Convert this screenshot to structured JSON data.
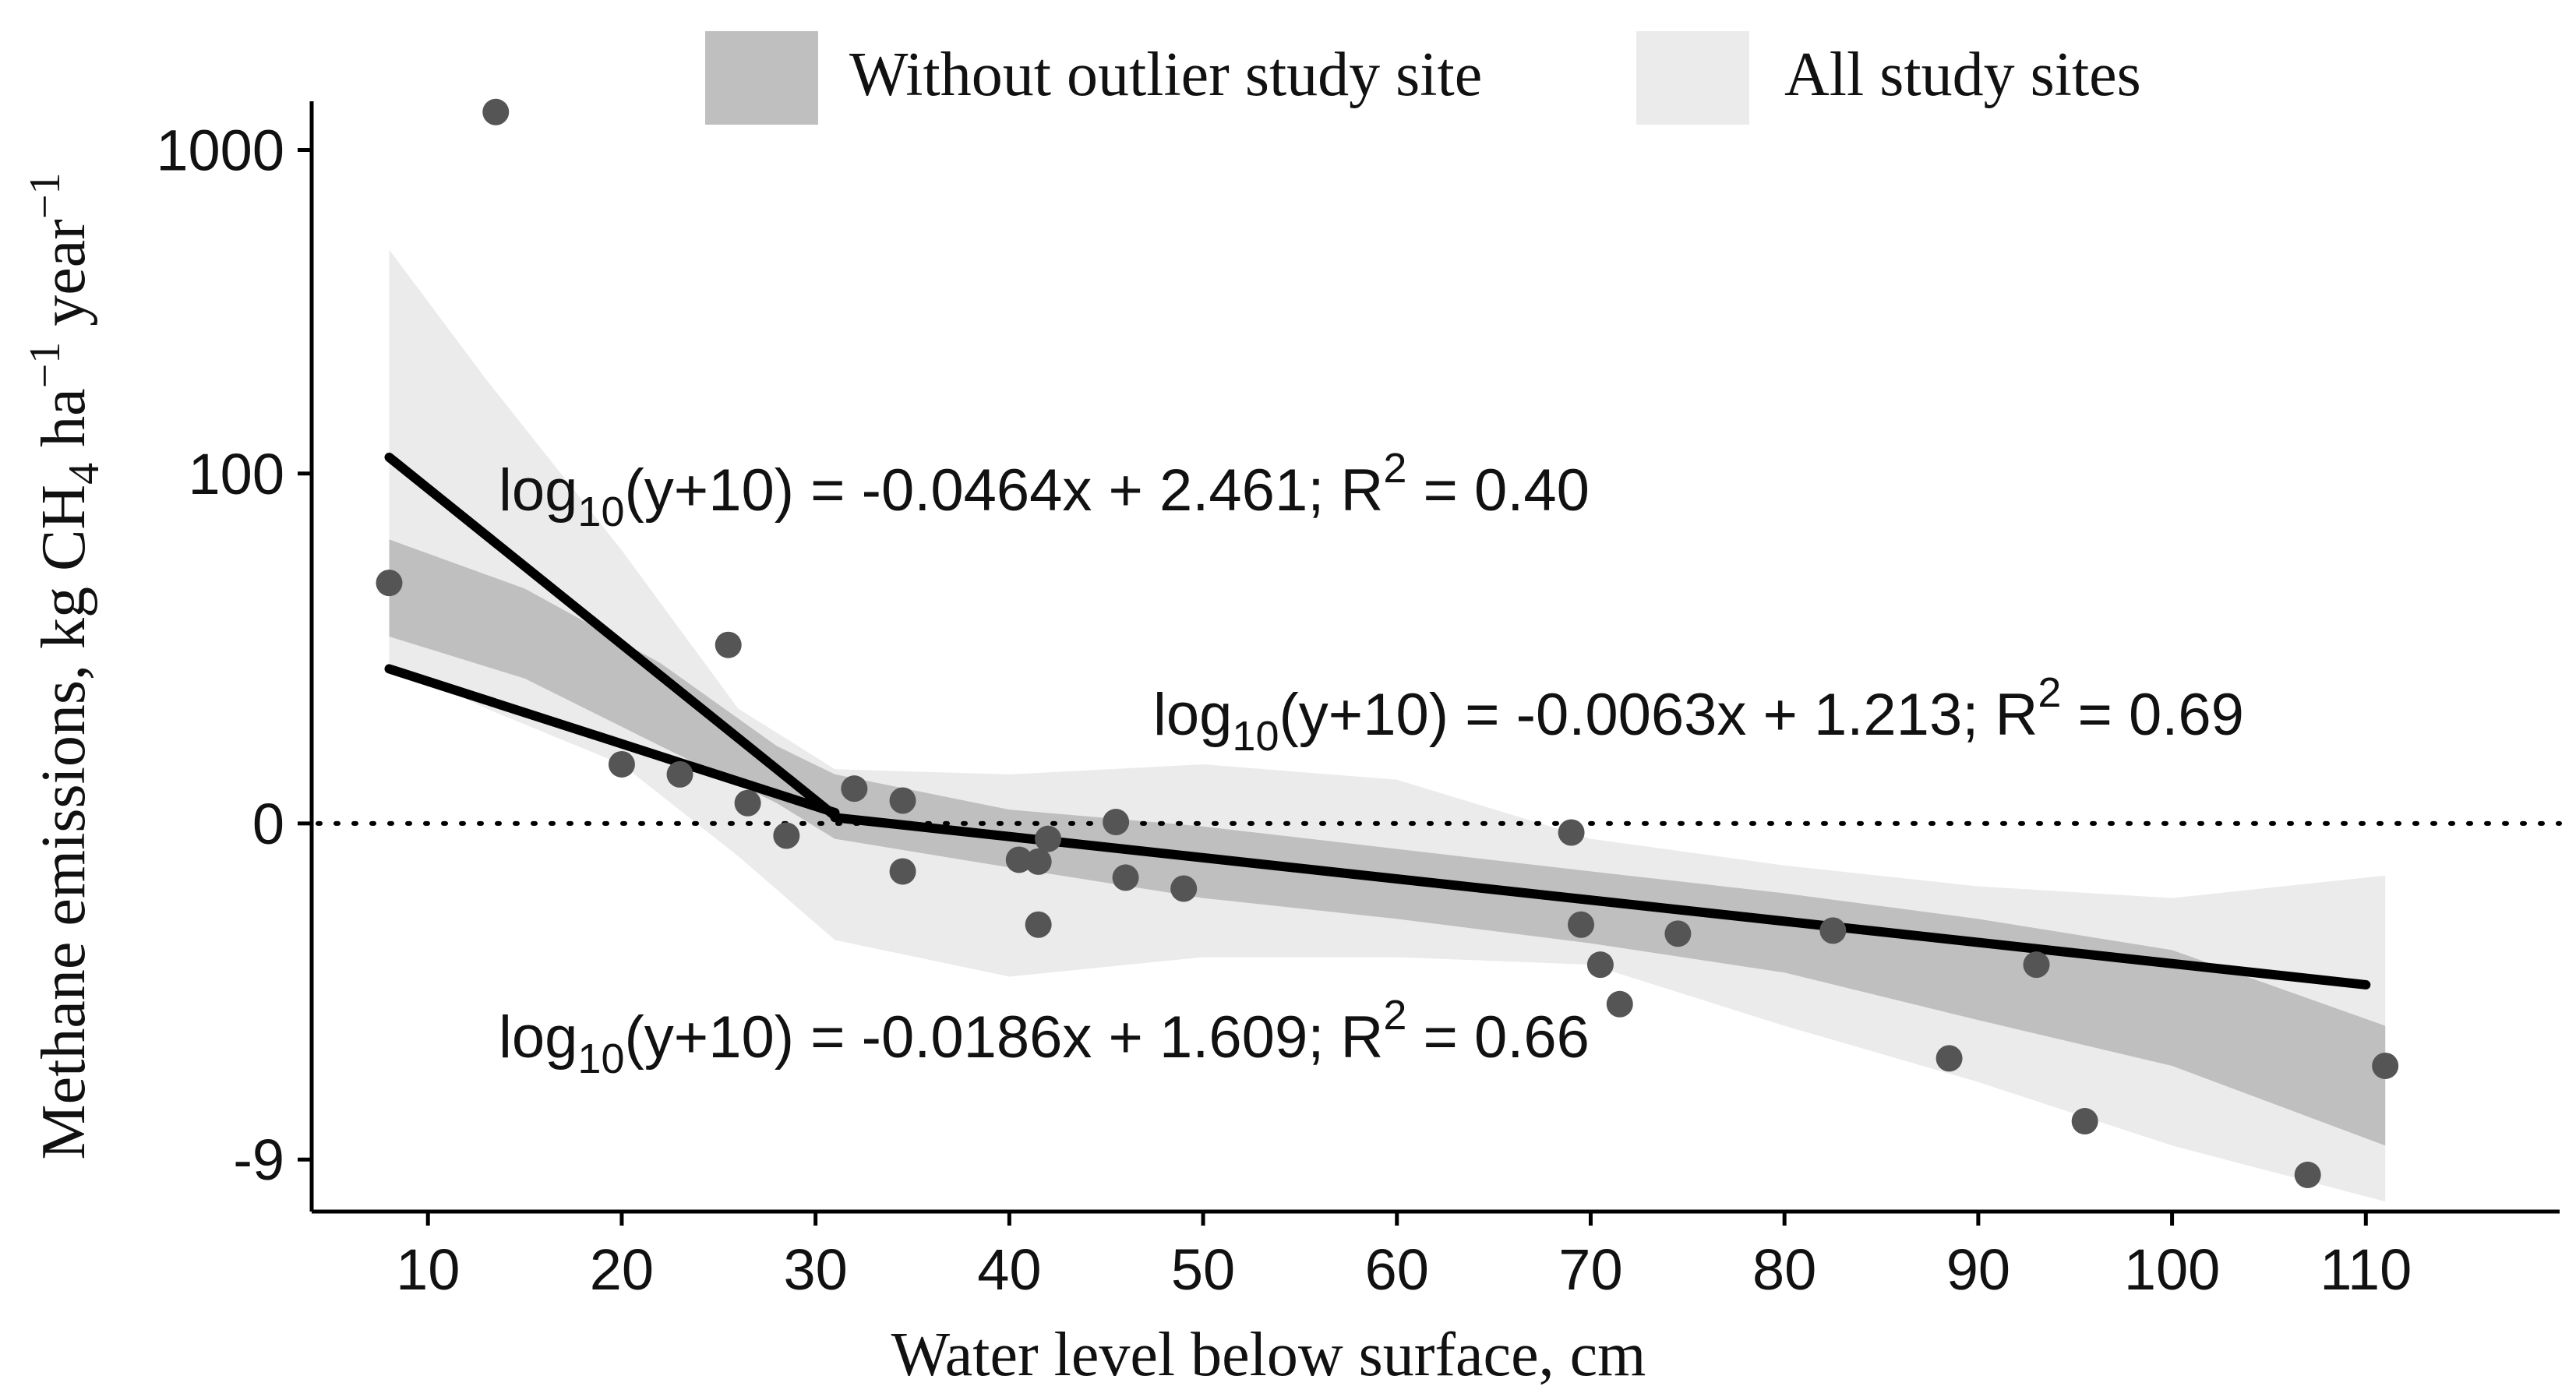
{
  "chart_data": {
    "type": "scatter",
    "xlabel": "Water level below surface, cm",
    "ylabel_parts": {
      "prefix": "Methane emissions,  kg CH",
      "sub": "4",
      "mid": " ha",
      "sup1": "−1",
      "mid2": " year",
      "sup2": "−1"
    },
    "xlim": [
      4,
      120
    ],
    "x_ticks": [
      10,
      20,
      30,
      40,
      50,
      60,
      70,
      80,
      90,
      100,
      110
    ],
    "y_scale": "log10(y+10)",
    "ylim": [
      -9.3,
      1400
    ],
    "y_ticks": [
      {
        "value": -9,
        "label": "-9"
      },
      {
        "value": 0,
        "label": "0"
      },
      {
        "value": 100,
        "label": "100"
      },
      {
        "value": 1000,
        "label": "1000"
      }
    ],
    "reference_line": {
      "y": 0,
      "style": "dotted"
    },
    "legend": {
      "position": "top",
      "items": [
        {
          "label": "Without outlier study site",
          "color": "#bfbfbf"
        },
        {
          "label": "All study sites",
          "color": "#ebebeb"
        }
      ]
    },
    "points": [
      {
        "x": 8,
        "y": 42
      },
      {
        "x": 13.5,
        "y": 1300
      },
      {
        "x": 20,
        "y": 5
      },
      {
        "x": 23,
        "y": 4
      },
      {
        "x": 25.5,
        "y": 24
      },
      {
        "x": 26.5,
        "y": 1.5
      },
      {
        "x": 28.5,
        "y": -0.8
      },
      {
        "x": 32,
        "y": 2.7
      },
      {
        "x": 34.5,
        "y": 1.7
      },
      {
        "x": 34.5,
        "y": -2.8
      },
      {
        "x": 40.5,
        "y": -2.2
      },
      {
        "x": 41.5,
        "y": -5.0
      },
      {
        "x": 41.5,
        "y": -2.3
      },
      {
        "x": 42,
        "y": -1.0
      },
      {
        "x": 45.5,
        "y": 0.1
      },
      {
        "x": 46,
        "y": -3.1
      },
      {
        "x": 49,
        "y": -3.6
      },
      {
        "x": 69,
        "y": -0.6
      },
      {
        "x": 69.5,
        "y": -5.0
      },
      {
        "x": 70.5,
        "y": -6.2
      },
      {
        "x": 71.5,
        "y": -7.1
      },
      {
        "x": 74.5,
        "y": -5.3
      },
      {
        "x": 82.5,
        "y": -5.2
      },
      {
        "x": 88.5,
        "y": -8.0
      },
      {
        "x": 93,
        "y": -6.2
      },
      {
        "x": 95.5,
        "y": -8.7
      },
      {
        "x": 107,
        "y": -9.1
      },
      {
        "x": 111,
        "y": -8.1
      }
    ],
    "series": [
      {
        "style": "fit-line",
        "equation": "log10(y+10) = -0.0464x + 2.461; R2 = 0.40",
        "slope": -0.0464,
        "intercept": 2.461,
        "x_range": [
          8,
          31
        ]
      },
      {
        "style": "fit-line",
        "equation": "log10(y+10) = -0.0186x + 1.609; R2 = 0.66",
        "slope": -0.0186,
        "intercept": 1.609,
        "x_range": [
          8,
          31
        ]
      },
      {
        "style": "fit-line",
        "equation": "log10(y+10) = -0.0063x + 1.213; R2 = 0.69",
        "slope": -0.0063,
        "intercept": 1.213,
        "x_range": [
          31,
          110
        ]
      }
    ],
    "bands": {
      "all_sites": {
        "x": [
          8,
          13,
          20,
          26,
          31,
          40,
          50,
          60,
          70,
          80,
          90,
          100,
          111
        ],
        "upper": [
          500,
          200,
          55,
          12,
          4.5,
          4.0,
          5.0,
          3.5,
          -1.0,
          -2.5,
          -3.5,
          -4.0,
          -3.0
        ],
        "lower": [
          20,
          12,
          5,
          -2.0,
          -5.5,
          -6.5,
          -6.0,
          -6.0,
          -6.2,
          -7.5,
          -8.3,
          -8.9,
          -9.25
        ]
      },
      "without_outlier": {
        "x": [
          8,
          15,
          22,
          28,
          31,
          40,
          50,
          60,
          70,
          80,
          90,
          100,
          111
        ],
        "upper": [
          60,
          40,
          20,
          7,
          4.0,
          1.0,
          -0.2,
          -1.6,
          -2.8,
          -3.8,
          -4.8,
          -5.8,
          -7.5
        ],
        "lower": [
          26,
          17,
          7,
          1.5,
          -1.0,
          -2.6,
          -4.0,
          -4.8,
          -5.6,
          -6.4,
          -7.4,
          -8.1,
          -8.9
        ]
      }
    },
    "annotations": [
      {
        "text_pre": "log",
        "text_sub": "10",
        "text_mid": "(y+10) = -0.0464x + 2.461; R",
        "text_sup": "2",
        "text_post": " = 0.40"
      },
      {
        "text_pre": "log",
        "text_sub": "10",
        "text_mid": "(y+10) = -0.0063x + 1.213; R",
        "text_sup": "2",
        "text_post": " = 0.69"
      },
      {
        "text_pre": "log",
        "text_sub": "10",
        "text_mid": "(y+10) = -0.0186x + 1.609; R",
        "text_sup": "2",
        "text_post": " = 0.66"
      }
    ],
    "colors": {
      "points": "#555555",
      "fit_line": "#000000",
      "band_all": "#ebebeb",
      "band_without": "#bfbfbf"
    }
  }
}
